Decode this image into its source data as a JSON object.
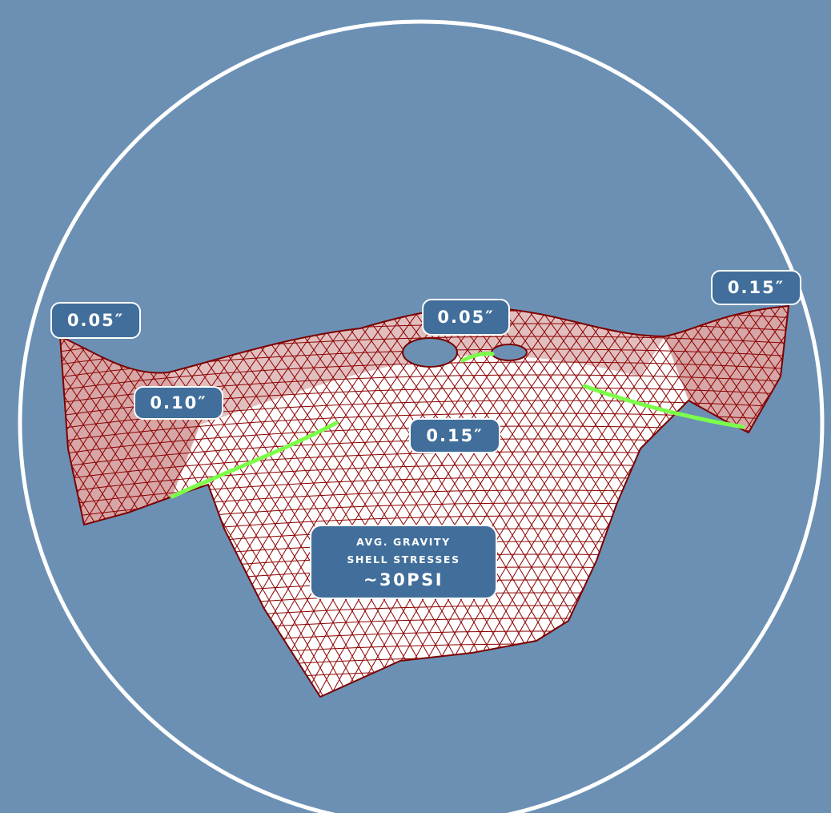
{
  "thickness_labels": {
    "left_tip": "0.05″",
    "center_top": "0.05″",
    "right_tip": "0.15″",
    "left_valley": "0.10″",
    "center_dome": "0.15″"
  },
  "stress_note": {
    "line1": "AVG. GRAVITY",
    "line2": "SHELL STRESSES",
    "value": "~30PSI"
  },
  "colors": {
    "background": "#6b90b4",
    "circle": "#ffffff",
    "mesh": "#8b0000",
    "shell_fill": "#ffffff",
    "support": "#7cff4a",
    "label_bg": "#416e9a"
  }
}
